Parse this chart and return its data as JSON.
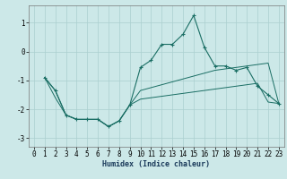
{
  "xlabel": "Humidex (Indice chaleur)",
  "bg_color": "#cce8e8",
  "grid_color": "#aacfcf",
  "line_color": "#1a6e64",
  "xlim": [
    -0.5,
    23.5
  ],
  "ylim": [
    -3.3,
    1.6
  ],
  "x_ticks": [
    0,
    1,
    2,
    3,
    4,
    5,
    6,
    7,
    8,
    9,
    10,
    11,
    12,
    13,
    14,
    15,
    16,
    17,
    18,
    19,
    20,
    21,
    22,
    23
  ],
  "y_ticks": [
    -3,
    -2,
    -1,
    0,
    1
  ],
  "main_x": [
    1,
    2,
    3,
    4,
    5,
    6,
    7,
    8,
    9,
    10,
    11,
    12,
    13,
    14,
    15,
    16,
    17,
    18,
    19,
    20,
    21,
    22,
    23
  ],
  "main_y": [
    -0.9,
    -1.35,
    -2.2,
    -2.35,
    -2.35,
    -2.35,
    -2.6,
    -2.4,
    -1.85,
    -0.55,
    -0.3,
    0.25,
    0.25,
    0.6,
    1.25,
    0.15,
    -0.5,
    -0.5,
    -0.65,
    -0.55,
    -1.2,
    -1.5,
    -1.8
  ],
  "upper_x": [
    1,
    2,
    3,
    4,
    5,
    6,
    7,
    8,
    9,
    10,
    11,
    12,
    13,
    14,
    15,
    16,
    17,
    18,
    19,
    20,
    21,
    22,
    23
  ],
  "upper_y": [
    -0.9,
    -1.35,
    -2.2,
    -2.35,
    -2.35,
    -2.35,
    -2.6,
    -2.4,
    -1.85,
    -1.35,
    -1.25,
    -1.15,
    -1.05,
    -0.95,
    -0.85,
    -0.75,
    -0.65,
    -0.6,
    -0.55,
    -0.5,
    -0.45,
    -0.4,
    -1.8
  ],
  "lower_x": [
    1,
    2,
    3,
    4,
    5,
    6,
    7,
    8,
    9,
    10,
    11,
    12,
    13,
    14,
    15,
    16,
    17,
    18,
    19,
    20,
    21,
    22,
    23
  ],
  "lower_y": [
    -0.9,
    -1.6,
    -2.2,
    -2.35,
    -2.35,
    -2.35,
    -2.6,
    -2.4,
    -1.85,
    -1.65,
    -1.6,
    -1.55,
    -1.5,
    -1.45,
    -1.4,
    -1.35,
    -1.3,
    -1.25,
    -1.2,
    -1.15,
    -1.1,
    -1.75,
    -1.8
  ],
  "tick_fontsize": 5.5,
  "xlabel_fontsize": 6.0
}
